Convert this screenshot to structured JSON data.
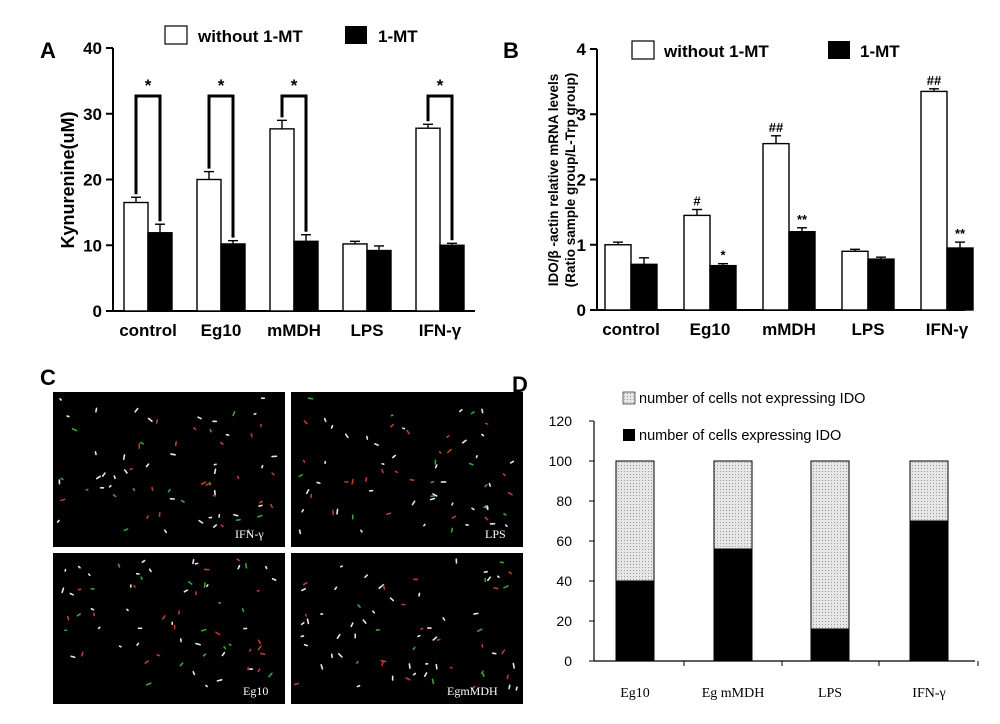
{
  "panel_labels": {
    "a": "A",
    "b": "B",
    "c": "C",
    "d": "D"
  },
  "chart_data": [
    {
      "panel": "A",
      "type": "bar",
      "ylabel": "Kynurenine(uM)",
      "ylim": [
        0,
        40
      ],
      "yticks": [
        "0",
        "10",
        "20",
        "30",
        "40"
      ],
      "categories": [
        "control",
        "Eg10",
        "mMDH",
        "LPS",
        "IFN-γ"
      ],
      "series": [
        {
          "name": "without 1-MT",
          "color": "#ffffff",
          "values": [
            16.5,
            20.0,
            27.7,
            10.2,
            27.8
          ],
          "errors": [
            0.8,
            1.2,
            1.3,
            0.4,
            0.6
          ]
        },
        {
          "name": "1-MT",
          "color": "#000000",
          "values": [
            11.9,
            10.2,
            10.6,
            9.2,
            10.0
          ],
          "errors": [
            1.3,
            0.5,
            1.0,
            0.7,
            0.3
          ]
        }
      ],
      "significance": [
        "*",
        "*",
        "*",
        "",
        "*"
      ],
      "legend": [
        "without 1-MT",
        "1-MT"
      ]
    },
    {
      "panel": "B",
      "type": "bar",
      "ylabel_line1": "IDO/β -actin relative mRNA levels",
      "ylabel_line2": "(Ratio sample group/L-Trp group)",
      "ylim": [
        0,
        4
      ],
      "yticks": [
        "0",
        "1",
        "2",
        "3",
        "4"
      ],
      "categories": [
        "control",
        "Eg10",
        "mMDH",
        "LPS",
        "IFN-γ"
      ],
      "series": [
        {
          "name": "without 1-MT",
          "color": "#ffffff",
          "values": [
            1.0,
            1.45,
            2.55,
            0.9,
            3.35
          ],
          "errors": [
            0.04,
            0.09,
            0.12,
            0.03,
            0.04
          ],
          "marks": [
            "",
            "#",
            "##",
            "",
            "##"
          ]
        },
        {
          "name": "1-MT",
          "color": "#000000",
          "values": [
            0.7,
            0.68,
            1.2,
            0.78,
            0.95
          ],
          "errors": [
            0.1,
            0.03,
            0.06,
            0.03,
            0.09
          ],
          "marks": [
            "",
            "*",
            "**",
            "",
            "**"
          ]
        }
      ],
      "legend": [
        "without 1-MT",
        "1-MT"
      ]
    },
    {
      "panel": "D",
      "type": "bar",
      "stacked": true,
      "ylim": [
        0,
        120
      ],
      "yticks": [
        "0",
        "20",
        "40",
        "60",
        "80",
        "100",
        "120"
      ],
      "categories": [
        "Eg10",
        "Eg mMDH",
        "LPS",
        "IFN-γ"
      ],
      "series": [
        {
          "name": "number of cells expressing IDO",
          "color": "#000000",
          "values": [
            40,
            56,
            16,
            70
          ]
        },
        {
          "name": "number of cells not expressing IDO",
          "color": "#d9d9d9",
          "values": [
            60,
            44,
            84,
            30
          ]
        }
      ]
    }
  ],
  "micrographs": {
    "labels": [
      "IFN-γ",
      "LPS",
      "Eg10",
      "EgmMDH"
    ]
  }
}
